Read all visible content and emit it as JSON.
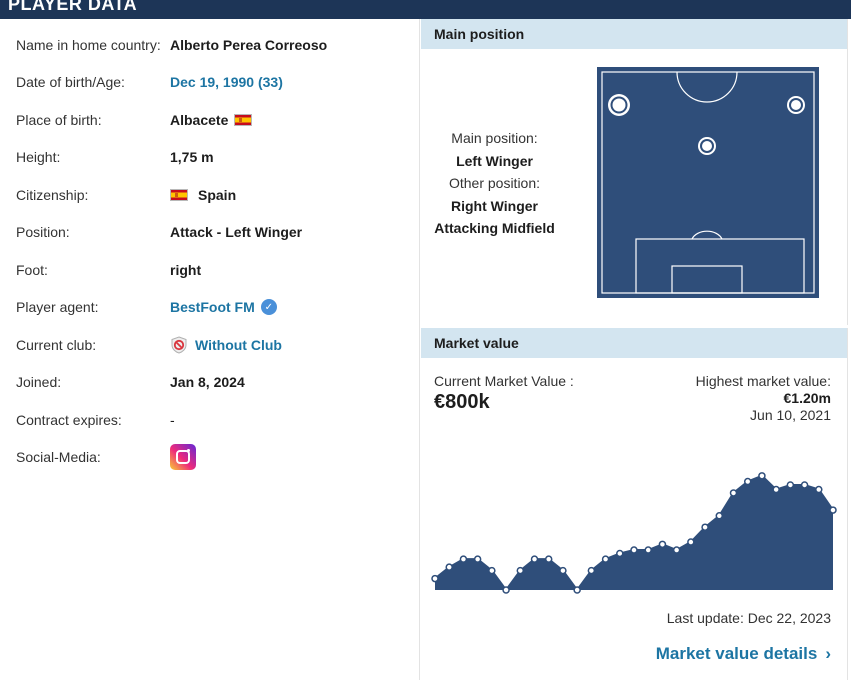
{
  "header": {
    "title": "PLAYER DATA"
  },
  "player_data": {
    "rows": [
      {
        "label": "Name in home country:",
        "value": "Alberto Perea Correoso"
      },
      {
        "label": "Date of birth/Age:",
        "value": "Dec 19, 1990 (33)"
      },
      {
        "label": "Place of birth:",
        "value": "Albacete"
      },
      {
        "label": "Height:",
        "value": "1,75 m"
      },
      {
        "label": "Citizenship:",
        "value": "Spain"
      },
      {
        "label": "Position:",
        "value": "Attack - Left Winger"
      },
      {
        "label": "Foot:",
        "value": "right"
      },
      {
        "label": "Player agent:",
        "value": "BestFoot FM"
      },
      {
        "label": "Current club:",
        "value": "Without Club"
      },
      {
        "label": "Joined:",
        "value": "Jan 8, 2024"
      },
      {
        "label": "Contract expires:",
        "value": "-"
      },
      {
        "label": "Social-Media:",
        "value": ""
      }
    ]
  },
  "main_position": {
    "heading": "Main position",
    "main_label": "Main position:",
    "main_value": "Left Winger",
    "other_label": "Other position:",
    "other_values": [
      "Right Winger",
      "Attacking Midfield"
    ]
  },
  "market_value": {
    "heading": "Market value",
    "current_label": "Current Market Value :",
    "current_value": "€800k",
    "highest_label": "Highest market value:",
    "highest_value": "€1.20m",
    "highest_date": "Jun 10, 2021",
    "last_update": "Last update: Dec 22, 2023",
    "details_link": "Market value details"
  },
  "colors": {
    "navy": "#1d3557",
    "link": "#1d75a3",
    "panel_head": "#d3e5f0",
    "pitch": "#2f4e7a"
  },
  "icons": {
    "verified": "check-badge-icon",
    "club": "no-club-icon",
    "social": "instagram-icon",
    "chevron": "chevron-right-icon"
  },
  "chart_data": {
    "type": "area",
    "values": [
      0.1,
      0.2,
      0.27,
      0.27,
      0.17,
      0.0,
      0.17,
      0.27,
      0.27,
      0.17,
      0.0,
      0.17,
      0.27,
      0.32,
      0.35,
      0.35,
      0.4,
      0.35,
      0.42,
      0.55,
      0.65,
      0.85,
      0.95,
      1.0,
      0.88,
      0.92,
      0.92,
      0.88,
      0.7
    ],
    "ylim": [
      0,
      1.2
    ],
    "grid": false,
    "legend": "none"
  }
}
